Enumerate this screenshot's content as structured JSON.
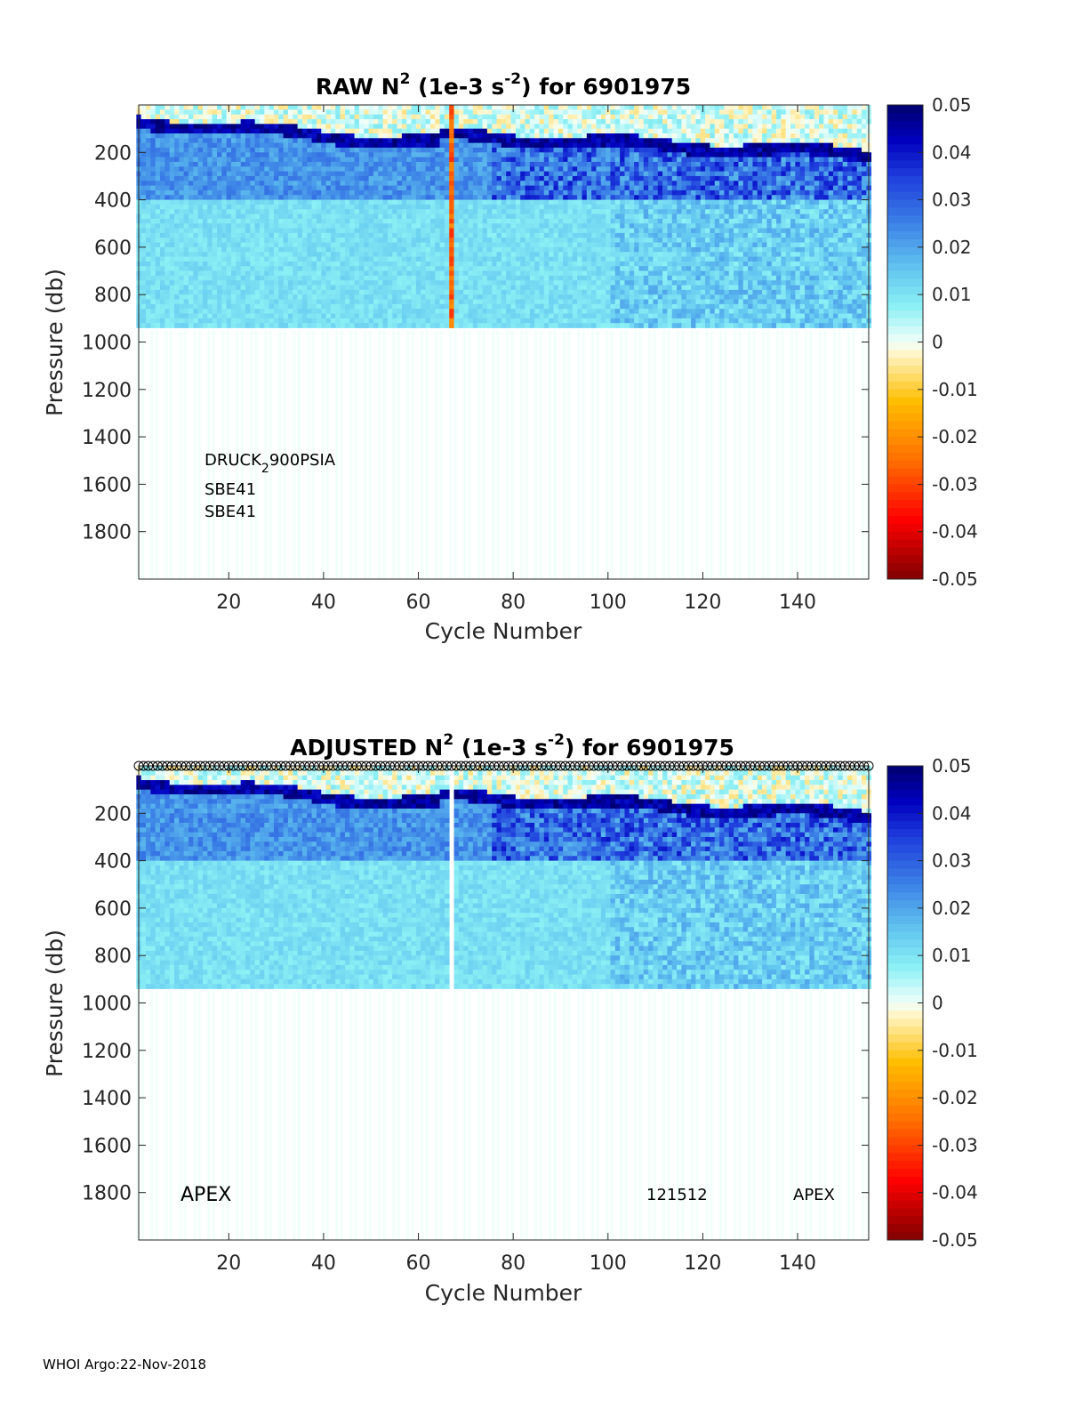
{
  "footer": "WHOI Argo:22-Nov-2018",
  "chart_data": [
    {
      "type": "heatmap",
      "title_prefix": "RAW N",
      "title_sup1": "2",
      "title_mid": " (1e-3 s",
      "title_sup2": "-2",
      "title_suffix": ") for 6901975",
      "xlabel": "Cycle Number",
      "ylabel": "Pressure (db)",
      "xlim": [
        1,
        155
      ],
      "ylim": [
        0,
        2000
      ],
      "y_reversed": true,
      "xticks": [
        20,
        40,
        60,
        80,
        100,
        120,
        140
      ],
      "yticks": [
        200,
        400,
        600,
        800,
        1000,
        1200,
        1400,
        1600,
        1800
      ],
      "colorbar": {
        "ticks": [
          "0.05",
          "0.04",
          "0.03",
          "0.02",
          "0.01",
          "0",
          "-0.01",
          "-0.02",
          "-0.03",
          "-0.04",
          "-0.05"
        ],
        "min": -0.05,
        "max": 0.05
      },
      "annotations": [
        "DRUCK",
        "2",
        "900PSIA",
        "SBE41",
        "SBE41"
      ],
      "features": {
        "thermocline_strong_positive": true,
        "negative_anomaly_cycle": 67,
        "negative_anomaly_range_db": [
          20,
          900
        ],
        "profile_bottom_db": 950
      }
    },
    {
      "type": "heatmap",
      "title_prefix": "ADJUSTED N",
      "title_sup1": "2",
      "title_mid": " (1e-3 s",
      "title_sup2": "-2",
      "title_suffix": ") for 6901975",
      "xlabel": "Cycle Number",
      "ylabel": "Pressure (db)",
      "xlim": [
        1,
        155
      ],
      "ylim": [
        0,
        2000
      ],
      "y_reversed": true,
      "xticks": [
        20,
        40,
        60,
        80,
        100,
        120,
        140
      ],
      "yticks": [
        200,
        400,
        600,
        800,
        1000,
        1200,
        1400,
        1600,
        1800
      ],
      "colorbar": {
        "ticks": [
          "0.05",
          "0.04",
          "0.03",
          "0.02",
          "0.01",
          "0",
          "-0.01",
          "-0.02",
          "-0.03",
          "-0.04",
          "-0.05"
        ],
        "min": -0.05,
        "max": 0.05
      },
      "annotations": [
        "APEX",
        "121512",
        "APEX"
      ],
      "features": {
        "qc_markers_top": true,
        "removed_cycle": 67,
        "profile_bottom_db": 950
      }
    }
  ]
}
